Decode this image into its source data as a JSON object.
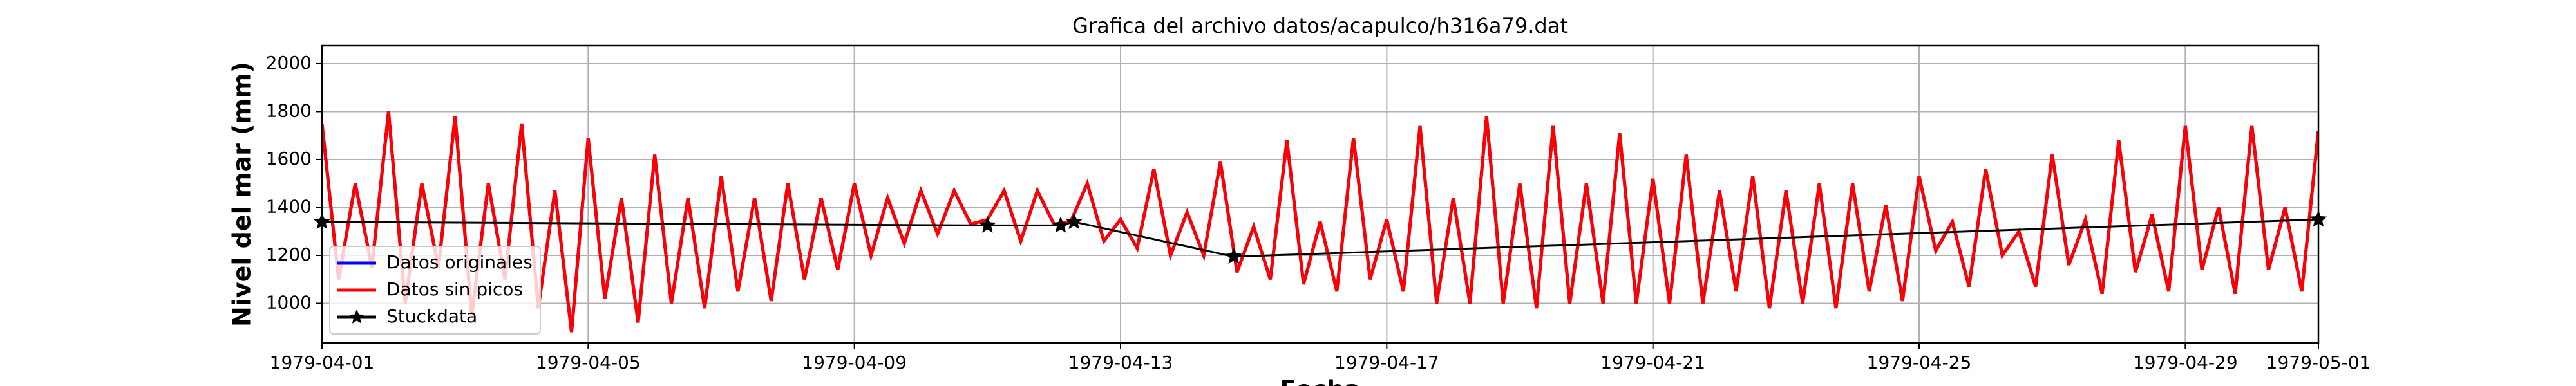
{
  "chart_data": {
    "type": "line",
    "title": "Grafica del archivo datos/acapulco/h316a79.dat",
    "xlabel": "Fecha",
    "ylabel": "Nivel del mar (mm)",
    "x": [
      0,
      0.25,
      0.5,
      0.75,
      1,
      1.25,
      1.5,
      1.75,
      2,
      2.25,
      2.5,
      2.75,
      3,
      3.25,
      3.5,
      3.75,
      4,
      4.25,
      4.5,
      4.75,
      5,
      5.25,
      5.5,
      5.75,
      6,
      6.25,
      6.5,
      6.75,
      7,
      7.25,
      7.5,
      7.75,
      8,
      8.25,
      8.5,
      8.75,
      9,
      9.25,
      9.5,
      9.75,
      10,
      10.25,
      10.5,
      10.75,
      11,
      11.25,
      11.5,
      11.75,
      12,
      12.25,
      12.5,
      12.75,
      13,
      13.25,
      13.5,
      13.75,
      14,
      14.25,
      14.5,
      14.75,
      15,
      15.25,
      15.5,
      15.75,
      16,
      16.25,
      16.5,
      16.75,
      17,
      17.25,
      17.5,
      17.75,
      18,
      18.25,
      18.5,
      18.75,
      19,
      19.25,
      19.5,
      19.75,
      20,
      20.25,
      20.5,
      20.75,
      21,
      21.25,
      21.5,
      21.75,
      22,
      22.25,
      22.5,
      22.75,
      23,
      23.25,
      23.5,
      23.75,
      24,
      24.25,
      24.5,
      24.75,
      25,
      25.25,
      25.5,
      25.75,
      26,
      26.25,
      26.5,
      26.75,
      27,
      27.25,
      27.5,
      27.75,
      28,
      28.25,
      28.5,
      28.75,
      29,
      29.25,
      29.5,
      29.75,
      30
    ],
    "series": [
      {
        "name": "Datos originales",
        "color": "#0000ff",
        "values": [
          1750,
          1100,
          1500,
          1150,
          1800,
          1000,
          1500,
          1150,
          1780,
          950,
          1500,
          1100,
          1750,
          980,
          1470,
          880,
          1690,
          1020,
          1440,
          920,
          1620,
          1000,
          1440,
          980,
          1530,
          1050,
          1440,
          1010,
          1500,
          1100,
          1440,
          1140,
          1500,
          1200,
          1440,
          1250,
          1470,
          1290,
          1470,
          1330,
          1350,
          1470,
          1260,
          1470,
          1330,
          1340,
          1500,
          1260,
          1350,
          1230,
          1560,
          1200,
          1380,
          1200,
          1590,
          1130,
          1320,
          1100,
          1680,
          1080,
          1340,
          1050,
          1690,
          1100,
          1350,
          1050,
          1740,
          1000,
          1440,
          1000,
          1780,
          1000,
          1500,
          980,
          1740,
          1000,
          1500,
          1000,
          1710,
          1000,
          1520,
          1000,
          1620,
          1000,
          1470,
          1050,
          1530,
          980,
          1470,
          1000,
          1500,
          980,
          1500,
          1050,
          1410,
          1010,
          1530,
          1220,
          1340,
          1070,
          1560,
          1200,
          1300,
          1070,
          1620,
          1160,
          1350,
          1040,
          1680,
          1130,
          1370,
          1050,
          1740,
          1140,
          1400,
          1040,
          1740,
          1140,
          1400,
          1050,
          1720
        ]
      },
      {
        "name": "Datos sin picos",
        "color": "#ff0000",
        "values": [
          1750,
          1100,
          1500,
          1150,
          1800,
          1000,
          1500,
          1150,
          1780,
          950,
          1500,
          1100,
          1750,
          980,
          1470,
          880,
          1690,
          1020,
          1440,
          920,
          1620,
          1000,
          1440,
          980,
          1530,
          1050,
          1440,
          1010,
          1500,
          1100,
          1440,
          1140,
          1500,
          1200,
          1440,
          1250,
          1470,
          1290,
          1470,
          1330,
          1350,
          1470,
          1260,
          1470,
          1330,
          1340,
          1500,
          1260,
          1350,
          1230,
          1560,
          1200,
          1380,
          1200,
          1590,
          1130,
          1320,
          1100,
          1680,
          1080,
          1340,
          1050,
          1690,
          1100,
          1350,
          1050,
          1740,
          1000,
          1440,
          1000,
          1780,
          1000,
          1500,
          980,
          1740,
          1000,
          1500,
          1000,
          1710,
          1000,
          1520,
          1000,
          1620,
          1000,
          1470,
          1050,
          1530,
          980,
          1470,
          1000,
          1500,
          980,
          1500,
          1050,
          1410,
          1010,
          1530,
          1220,
          1340,
          1070,
          1560,
          1200,
          1300,
          1070,
          1620,
          1160,
          1350,
          1040,
          1680,
          1130,
          1370,
          1050,
          1740,
          1140,
          1400,
          1040,
          1740,
          1140,
          1400,
          1050,
          1720
        ]
      },
      {
        "name": "Stuckdata",
        "color": "#000000",
        "marker": "star",
        "x": [
          0,
          10,
          11.1,
          11.3,
          13.7,
          30
        ],
        "values": [
          1340,
          1325,
          1325,
          1340,
          1195,
          1350
        ]
      }
    ],
    "xlim": [
      0,
      30
    ],
    "xticks": [
      {
        "value": 0,
        "label": "1979-04-01"
      },
      {
        "value": 4,
        "label": "1979-04-05"
      },
      {
        "value": 8,
        "label": "1979-04-09"
      },
      {
        "value": 12,
        "label": "1979-04-13"
      },
      {
        "value": 16,
        "label": "1979-04-17"
      },
      {
        "value": 20,
        "label": "1979-04-21"
      },
      {
        "value": 24,
        "label": "1979-04-25"
      },
      {
        "value": 28,
        "label": "1979-04-29"
      },
      {
        "value": 30,
        "label": "1979-05-01"
      }
    ],
    "ylim": [
      835,
      2075
    ],
    "yticks": [
      1000,
      1200,
      1400,
      1600,
      1800,
      2000
    ],
    "grid": true,
    "legend": "lower left"
  }
}
